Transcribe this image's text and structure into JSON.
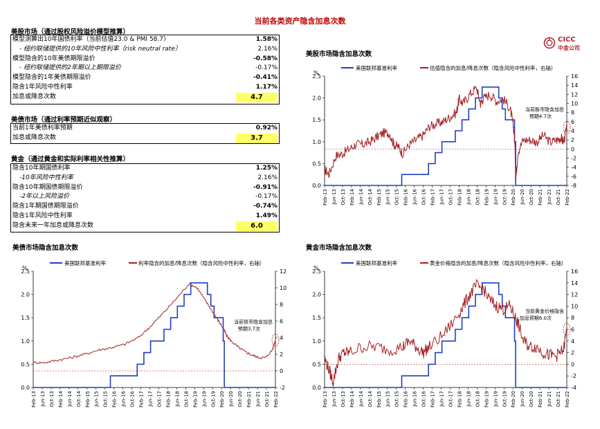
{
  "title": "当前各类资产隐含加息次数",
  "logo": {
    "text": "CICC",
    "sub": "中金公司"
  },
  "tables": [
    {
      "title": "美股市场（通过股权风险溢价模型推算）",
      "rows": [
        {
          "label": "模型测算出10年国债利率（当前估值23.0 & PMI 58.7）",
          "value": "1.58%",
          "bold": true,
          "italic": false
        },
        {
          "label": "- 纽约联储提供的10年风险中性利率（risk neutral rate）",
          "value": "2.16%",
          "bold": false,
          "italic": true
        },
        {
          "label": "模型隐含的10年美债期限溢价",
          "value": "-0.58%",
          "bold": true,
          "italic": false
        },
        {
          "label": "- 纽约联储提供的2年期以上期限溢价",
          "value": "-0.17%",
          "bold": false,
          "italic": true
        },
        {
          "label": "模型隐含的1年美债期限溢价",
          "value": "-0.41%",
          "bold": true,
          "italic": false
        },
        {
          "label": "隐含1年风险中性利率",
          "value": "1.17%",
          "bold": true,
          "italic": false
        },
        {
          "label": "加息或降息次数",
          "value": "4.7",
          "bold": true,
          "italic": false,
          "highlight": true
        }
      ]
    },
    {
      "title": "美债市场（通过利率预期近似观察）",
      "rows": [
        {
          "label": "当前1年美债利率预期",
          "value": "0.92%",
          "bold": true,
          "italic": false
        },
        {
          "label": "加息或降息次数",
          "value": "3.7",
          "bold": true,
          "italic": false,
          "highlight": true
        }
      ]
    },
    {
      "title": "黄金（通过黄金和实际利率相关性推算）",
      "rows": [
        {
          "label": "隐含10年期国债利率",
          "value": "1.25%",
          "bold": true,
          "italic": false
        },
        {
          "label": "-10年风险中性利率",
          "value": "2.16%",
          "bold": false,
          "italic": true
        },
        {
          "label": "隐含10年期国债期限溢价",
          "value": "-0.91%",
          "bold": true,
          "italic": false
        },
        {
          "label": "-2年以上风险溢价",
          "value": "-0.17%",
          "bold": false,
          "italic": true
        },
        {
          "label": "隐含1年期国债期限溢价",
          "value": "-0.74%",
          "bold": true,
          "italic": false
        },
        {
          "label": "隐含1年风险中性利率",
          "value": "1.49%",
          "bold": true,
          "italic": false
        },
        {
          "label": "隐含未来一年加息或降息次数",
          "value": "6.0",
          "bold": true,
          "italic": false,
          "highlight": true
        }
      ]
    }
  ],
  "chart_data": [
    {
      "type": "line",
      "title": "美股市场隐含加息次数",
      "left_unit": "%",
      "ylim_left": [
        0,
        2.5
      ],
      "left_ticks": [
        "0.0",
        "0.5",
        "1.0",
        "1.5",
        "2.0",
        "2.5"
      ],
      "ylim_right": [
        -8,
        16
      ],
      "right_ticks": [
        "-8",
        "-6",
        "-4",
        "-2",
        "0",
        "2",
        "4",
        "6",
        "8",
        "10",
        "12",
        "14",
        "16"
      ],
      "x_ticks": [
        "Feb-13",
        "Jun-13",
        "Oct-13",
        "Feb-14",
        "Jun-14",
        "Oct-14",
        "Feb-15",
        "Jun-15",
        "Oct-15",
        "Feb-16",
        "Jun-16",
        "Oct-16",
        "Feb-17",
        "Jun-17",
        "Oct-17",
        "Feb-18",
        "Jun-18",
        "Oct-18",
        "Feb-19",
        "Jun-19",
        "Oct-19",
        "Feb-20",
        "Jun-20",
        "Oct-20",
        "Feb-21",
        "Jun-21",
        "Oct-21",
        "Feb-22"
      ],
      "legend": [
        "美国联邦基准利率",
        "估值隐含的加息/降息次数（隐含风险中性利率，右轴）"
      ],
      "annotation": [
        "当前股市隐含加息",
        "预期4.7次"
      ],
      "right_zero_line": 0,
      "series": [
        {
          "name": "美国联邦基准利率",
          "axis": "left",
          "color": "#1f3fbf",
          "x": [
            2013.08,
            2015.96,
            2015.96,
            2016.96,
            2016.96,
            2017.21,
            2017.21,
            2017.46,
            2017.46,
            2017.96,
            2017.96,
            2018.21,
            2018.21,
            2018.46,
            2018.46,
            2018.71,
            2018.71,
            2018.96,
            2018.96,
            2019.58,
            2019.58,
            2019.71,
            2019.71,
            2019.83,
            2019.83,
            2020.17,
            2020.17,
            2020.21,
            2020.21,
            2022.12
          ],
          "y": [
            0.0,
            0.0,
            0.25,
            0.25,
            0.5,
            0.5,
            0.75,
            0.75,
            1.0,
            1.0,
            1.25,
            1.25,
            1.5,
            1.5,
            1.75,
            1.75,
            2.0,
            2.0,
            2.25,
            2.25,
            2.0,
            2.0,
            1.75,
            1.75,
            1.5,
            1.5,
            1.0,
            1.0,
            0.0,
            0.0
          ]
        },
        {
          "name": "估值隐含的加息/降息次数（隐含风险中性利率，右轴）",
          "axis": "right",
          "color": "#a41e22",
          "x": [
            2013.08,
            2013.25,
            2013.5,
            2013.75,
            2014.0,
            2014.25,
            2014.5,
            2014.75,
            2015.0,
            2015.25,
            2015.5,
            2015.67,
            2015.83,
            2016.0,
            2016.25,
            2016.5,
            2016.75,
            2017.0,
            2017.25,
            2017.5,
            2017.75,
            2018.0,
            2018.1,
            2018.25,
            2018.5,
            2018.75,
            2018.9,
            2019.0,
            2019.25,
            2019.5,
            2019.75,
            2020.0,
            2020.1,
            2020.17,
            2020.22,
            2020.3,
            2020.5,
            2020.75,
            2021.0,
            2021.25,
            2021.5,
            2021.75,
            2021.9,
            2022.0,
            2022.12
          ],
          "y": [
            -4.5,
            -5.5,
            -1.5,
            -1,
            0,
            1,
            1,
            1.5,
            2.5,
            3.5,
            3.5,
            1,
            0.5,
            -1,
            1,
            2,
            3,
            5,
            5.5,
            6,
            7,
            8,
            11,
            10,
            12,
            13.5,
            10,
            11,
            12,
            10.5,
            11,
            9,
            6,
            3,
            -6.5,
            -0.5,
            2,
            2,
            1.5,
            3,
            1.5,
            2,
            2.5,
            1.5,
            4.7
          ]
        }
      ]
    },
    {
      "type": "line",
      "title": "美债市场隐含加息次数",
      "left_unit": "%",
      "ylim_left": [
        0,
        2.5
      ],
      "left_ticks": [
        "0.0",
        "0.5",
        "1.0",
        "1.5",
        "2.0",
        "2.5"
      ],
      "ylim_right": [
        -2,
        12
      ],
      "right_ticks": [
        "-2",
        "0",
        "2",
        "4",
        "6",
        "8",
        "10",
        "12"
      ],
      "x_ticks": [
        "Feb-13",
        "Jun-13",
        "Oct-13",
        "Feb-14",
        "Jun-14",
        "Oct-14",
        "Feb-15",
        "Jun-15",
        "Oct-15",
        "Feb-16",
        "Jun-16",
        "Oct-16",
        "Feb-17",
        "Jun-17",
        "Oct-17",
        "Feb-18",
        "Jun-18",
        "Oct-18",
        "Feb-19",
        "Jun-19",
        "Oct-19",
        "Feb-20",
        "Jun-20",
        "Oct-20",
        "Feb-21",
        "Jun-21",
        "Oct-21",
        "Feb-22"
      ],
      "legend": [
        "美国联邦基准利率",
        "利率隐含的加息/降息次数（隐含风险中性利率，右轴）"
      ],
      "annotation": [
        "当前债市隐含加息",
        "预期3.7次"
      ],
      "right_zero_line": 0,
      "series": [
        {
          "name": "美国联邦基准利率",
          "axis": "left",
          "color": "#1f3fbf",
          "x": [
            2013.08,
            2015.96,
            2015.96,
            2016.96,
            2016.96,
            2017.21,
            2017.21,
            2017.46,
            2017.46,
            2017.96,
            2017.96,
            2018.21,
            2018.21,
            2018.46,
            2018.46,
            2018.71,
            2018.71,
            2018.96,
            2018.96,
            2019.58,
            2019.58,
            2019.71,
            2019.71,
            2019.83,
            2019.83,
            2020.17,
            2020.17,
            2020.21,
            2020.21,
            2022.12
          ],
          "y": [
            0.0,
            0.0,
            0.25,
            0.25,
            0.5,
            0.5,
            0.75,
            0.75,
            1.0,
            1.0,
            1.25,
            1.25,
            1.5,
            1.5,
            1.75,
            1.75,
            2.0,
            2.0,
            2.25,
            2.25,
            2.0,
            2.0,
            1.75,
            1.75,
            1.5,
            1.5,
            1.0,
            1.0,
            0.0,
            0.0
          ]
        },
        {
          "name": "利率隐含的加息/降息次数（隐含风险中性利率，右轴）",
          "axis": "right",
          "color": "#a41e22",
          "x": [
            2013.08,
            2013.5,
            2014.0,
            2014.5,
            2015.0,
            2015.5,
            2016.0,
            2016.5,
            2017.0,
            2017.5,
            2018.0,
            2018.5,
            2018.9,
            2019.2,
            2019.5,
            2019.8,
            2020.0,
            2020.2,
            2020.3,
            2020.5,
            2020.75,
            2021.0,
            2021.25,
            2021.5,
            2021.75,
            2022.0,
            2022.12
          ],
          "y": [
            1,
            1,
            1.3,
            1.6,
            2,
            2.5,
            2.8,
            3.2,
            4,
            5.5,
            7.2,
            9,
            10.5,
            10,
            8.5,
            7,
            6,
            5,
            4.2,
            3.5,
            2.8,
            2.3,
            1.9,
            1.6,
            1.6,
            2.5,
            3.7
          ]
        }
      ]
    },
    {
      "type": "line",
      "title": "黄金市场隐含加息次数",
      "left_unit": "%",
      "ylim_left": [
        0,
        2.5
      ],
      "left_ticks": [
        "0.0",
        "0.5",
        "1.0",
        "1.5",
        "2.0",
        "2.5"
      ],
      "ylim_right": [
        -4,
        16
      ],
      "right_ticks": [
        "-4",
        "-2",
        "0",
        "2",
        "4",
        "6",
        "8",
        "10",
        "12",
        "14",
        "16"
      ],
      "x_ticks": [
        "Feb-13",
        "Jun-13",
        "Oct-13",
        "Feb-14",
        "Jun-14",
        "Oct-14",
        "Feb-15",
        "Jun-15",
        "Oct-15",
        "Feb-16",
        "Jun-16",
        "Oct-16",
        "Feb-17",
        "Jun-17",
        "Oct-17",
        "Feb-18",
        "Jun-18",
        "Oct-18",
        "Feb-19",
        "Jun-19",
        "Oct-19",
        "Feb-20",
        "Jun-20",
        "Oct-20",
        "Feb-21",
        "Jun-21",
        "Oct-21",
        "Feb-22"
      ],
      "legend": [
        "美国联邦基准利率",
        "黄金价格隐含的加息/降息次数（隐含风险中性利率，右轴）"
      ],
      "annotation": [
        "当前黄金价格隐含",
        "加息预期6.0次"
      ],
      "right_zero_line": 0,
      "series": [
        {
          "name": "美国联邦基准利率",
          "axis": "left",
          "color": "#1f3fbf",
          "x": [
            2013.08,
            2015.96,
            2015.96,
            2016.96,
            2016.96,
            2017.21,
            2017.21,
            2017.46,
            2017.46,
            2017.96,
            2017.96,
            2018.21,
            2018.21,
            2018.46,
            2018.46,
            2018.71,
            2018.71,
            2018.96,
            2018.96,
            2019.58,
            2019.58,
            2019.71,
            2019.71,
            2019.83,
            2019.83,
            2020.17,
            2020.17,
            2020.21,
            2020.21,
            2022.12
          ],
          "y": [
            0.0,
            0.0,
            0.25,
            0.25,
            0.5,
            0.5,
            0.75,
            0.75,
            1.0,
            1.0,
            1.25,
            1.25,
            1.5,
            1.5,
            1.75,
            1.75,
            2.0,
            2.0,
            2.25,
            2.25,
            2.0,
            2.0,
            1.75,
            1.75,
            1.5,
            1.5,
            1.0,
            1.0,
            0.0,
            0.0
          ]
        },
        {
          "name": "黄金价格隐含的加息/降息次数（隐含风险中性利率，右轴）",
          "axis": "right",
          "color": "#a41e22",
          "x": [
            2013.08,
            2013.25,
            2013.4,
            2013.6,
            2013.8,
            2014.0,
            2014.5,
            2015.0,
            2015.5,
            2016.0,
            2016.25,
            2016.5,
            2016.75,
            2017.0,
            2017.5,
            2018.0,
            2018.25,
            2018.5,
            2018.75,
            2019.0,
            2019.25,
            2019.5,
            2019.75,
            2020.0,
            2020.2,
            2020.3,
            2020.5,
            2020.75,
            2021.0,
            2021.25,
            2021.5,
            2021.75,
            2022.0,
            2022.12
          ],
          "y": [
            1,
            -1,
            -3,
            1,
            2,
            2,
            3,
            3,
            2.5,
            3,
            4,
            3,
            2,
            3,
            5,
            8,
            10,
            12,
            13.5,
            13,
            11,
            10,
            9.5,
            10,
            8,
            7,
            4,
            3,
            3,
            2,
            1.5,
            1.5,
            2.5,
            6
          ]
        }
      ]
    }
  ]
}
